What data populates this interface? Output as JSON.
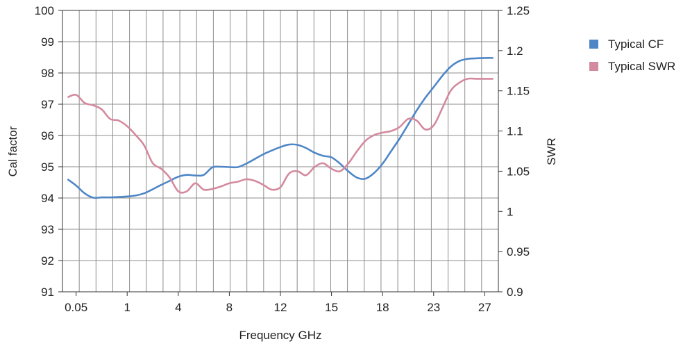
{
  "chart_data": {
    "type": "line",
    "title": "",
    "xlabel": "Frequency GHz",
    "ylabel": "Cal factor",
    "y2label": "SWR",
    "x_ticks": [
      "0.05",
      "1",
      "4",
      "8",
      "12",
      "15",
      "18",
      "23",
      "27"
    ],
    "x_tick_positions": [
      0.5,
      3.5,
      6.5,
      9.5,
      12.5,
      15.5,
      18.5,
      21.5,
      24.5
    ],
    "xlim": [
      -0.3,
      25.3
    ],
    "x_gridlines": 25,
    "ylim": [
      91,
      100
    ],
    "y_ticks": [
      "91",
      "92",
      "93",
      "94",
      "95",
      "96",
      "97",
      "98",
      "99",
      "100"
    ],
    "y2lim": [
      0.9,
      1.25
    ],
    "y2_ticks": [
      "0.9",
      "0.95",
      "1",
      "1.05",
      "1.1",
      "1.15",
      "1.2",
      "1.25"
    ],
    "grid": true,
    "legend_position": "right",
    "series": [
      {
        "name": "Typical CF",
        "axis": "left",
        "color": "#4f86c6",
        "x": [
          0,
          0.5,
          1,
          1.5,
          2,
          2.5,
          3,
          3.5,
          4,
          4.5,
          5,
          5.5,
          6,
          6.5,
          7,
          7.5,
          8,
          8.5,
          9,
          9.5,
          10,
          10.5,
          11,
          11.5,
          12,
          12.5,
          13,
          13.5,
          14,
          14.5,
          15,
          15.5,
          16,
          16.5,
          17,
          17.5,
          18,
          18.5,
          19,
          19.5,
          20,
          20.5,
          21,
          21.5,
          22,
          22.5,
          23,
          23.5,
          24,
          24.5,
          25
        ],
        "y": [
          94.6,
          94.4,
          94.15,
          94.01,
          94.02,
          94.02,
          94.03,
          94.05,
          94.08,
          94.15,
          94.28,
          94.42,
          94.55,
          94.68,
          94.74,
          94.72,
          94.74,
          94.98,
          95.0,
          94.99,
          94.99,
          95.1,
          95.25,
          95.4,
          95.52,
          95.63,
          95.71,
          95.7,
          95.6,
          95.45,
          95.35,
          95.3,
          95.1,
          94.85,
          94.65,
          94.62,
          94.8,
          95.1,
          95.5,
          95.9,
          96.35,
          96.8,
          97.2,
          97.55,
          97.9,
          98.2,
          98.38,
          98.45,
          98.47,
          98.48,
          98.48
        ]
      },
      {
        "name": "Typical SWR",
        "axis": "right",
        "color": "#d48a9e",
        "x": [
          0,
          0.5,
          1,
          1.5,
          2,
          2.5,
          3,
          3.5,
          4,
          4.5,
          5,
          5.5,
          6,
          6.5,
          7,
          7.5,
          8,
          8.5,
          9,
          9.5,
          10,
          10.5,
          11,
          11.5,
          12,
          12.5,
          13,
          13.5,
          14,
          14.5,
          15,
          15.5,
          16,
          16.5,
          17,
          17.5,
          18,
          18.5,
          19,
          19.5,
          20,
          20.5,
          21,
          21.5,
          22,
          22.5,
          23,
          23.5,
          24,
          24.5,
          25
        ],
        "y": [
          1.142,
          1.145,
          1.135,
          1.132,
          1.127,
          1.115,
          1.113,
          1.106,
          1.095,
          1.082,
          1.06,
          1.053,
          1.042,
          1.025,
          1.025,
          1.035,
          1.027,
          1.028,
          1.031,
          1.035,
          1.037,
          1.04,
          1.038,
          1.033,
          1.027,
          1.03,
          1.047,
          1.05,
          1.045,
          1.055,
          1.06,
          1.053,
          1.05,
          1.06,
          1.075,
          1.088,
          1.095,
          1.098,
          1.1,
          1.105,
          1.115,
          1.113,
          1.102,
          1.107,
          1.128,
          1.15,
          1.16,
          1.165,
          1.165,
          1.165,
          1.165
        ]
      }
    ]
  }
}
